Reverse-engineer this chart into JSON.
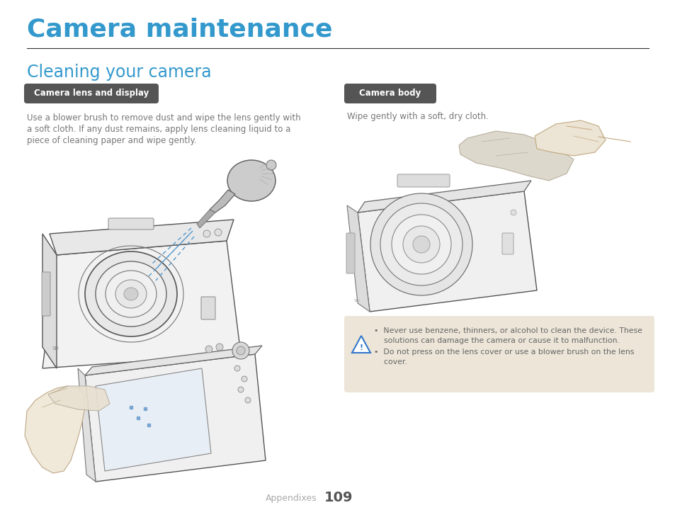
{
  "title": "Camera maintenance",
  "title_color": "#3399cc",
  "title_fontsize": 26,
  "divider_color": "#333333",
  "section_title": "Cleaning your camera",
  "section_title_color": "#3399cc",
  "section_title_fontsize": 17,
  "badge1_text": "Camera lens and display",
  "badge1_bg": "#555555",
  "badge1_text_color": "#ffffff",
  "badge2_text": "Camera body",
  "badge2_bg": "#555555",
  "badge2_text_color": "#ffffff",
  "body_text1_line1": "Use a blower brush to remove dust and wipe the lens gently with",
  "body_text1_line2": "a soft cloth. If any dust remains, apply lens cleaning liquid to a",
  "body_text1_line3": "piece of cleaning paper and wipe gently.",
  "body_text1_color": "#777777",
  "body_text2": "Wipe gently with a soft, dry cloth.",
  "body_text2_color": "#777777",
  "warn_line1": "•  Never use benzene, thinners, or alcohol to clean the device. These",
  "warn_line2": "    solutions can damage the camera or cause it to malfunction.",
  "warn_line3": "•  Do not press on the lens cover or use a blower brush on the lens",
  "warn_line4": "    cover.",
  "warning_bg": "#ece5d8",
  "warning_text_color": "#666666",
  "footer_left": "Appendixes",
  "footer_num": "109",
  "footer_color": "#aaaaaa",
  "footer_num_color": "#555555",
  "bg_color": "#ffffff",
  "line_color": "#bbbbbb"
}
